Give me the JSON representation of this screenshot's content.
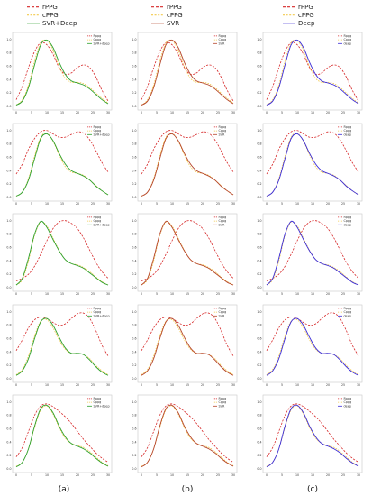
{
  "colors": {
    "rppg": "#d62728",
    "cppg": "#f2c94c",
    "svr_deep": "#2ca02c",
    "svr": "#b5452a",
    "deep": "#3a2bd6"
  },
  "top_legends": [
    {
      "col": 0,
      "entries": [
        "rPPG",
        "cPPG",
        "SVR+Deep"
      ]
    },
    {
      "col": 1,
      "entries": [
        "rPPG",
        "cPPG",
        "SVR"
      ]
    },
    {
      "col": 2,
      "entries": [
        "rPPG",
        "cPPG",
        "Deep"
      ]
    }
  ],
  "column_labels": [
    "(a)",
    "(b)",
    "(c)"
  ],
  "small_legends": [
    [
      "Rppg",
      "Cppg",
      "SVR+deep"
    ],
    [
      "Rppg",
      "Cppg",
      "SVR"
    ],
    [
      "Rppg",
      "Cppg",
      "deep"
    ]
  ],
  "chart_data": {
    "type": "line",
    "layout": "grid 5 rows x 3 columns",
    "x_ticks": [
      0,
      5,
      10,
      15,
      20,
      25,
      30
    ],
    "y_ticks": [
      0.0,
      0.2,
      0.4,
      0.6,
      0.8,
      1.0
    ],
    "xlim": [
      0,
      30
    ],
    "ylim": [
      0,
      1.05
    ],
    "x": [
      0,
      2,
      4,
      6,
      8,
      10,
      12,
      14,
      16,
      18,
      20,
      22,
      24,
      26,
      28,
      30
    ],
    "rows": [
      {
        "rppg": [
          0.1,
          0.3,
          0.58,
          0.82,
          0.95,
          0.92,
          0.78,
          0.58,
          0.48,
          0.5,
          0.58,
          0.62,
          0.58,
          0.44,
          0.24,
          0.08
        ],
        "cppg": [
          0.02,
          0.1,
          0.32,
          0.68,
          0.95,
          0.98,
          0.84,
          0.6,
          0.42,
          0.36,
          0.36,
          0.34,
          0.28,
          0.2,
          0.12,
          0.05
        ],
        "pred": [
          0.02,
          0.08,
          0.28,
          0.62,
          0.92,
          0.99,
          0.88,
          0.66,
          0.48,
          0.38,
          0.35,
          0.32,
          0.26,
          0.18,
          0.1,
          0.04
        ]
      },
      {
        "rppg": [
          0.35,
          0.5,
          0.72,
          0.88,
          0.98,
          1.0,
          0.95,
          0.9,
          0.9,
          0.94,
          0.98,
          0.96,
          0.86,
          0.7,
          0.52,
          0.38
        ],
        "cppg": [
          0.02,
          0.08,
          0.28,
          0.62,
          0.9,
          0.96,
          0.84,
          0.64,
          0.46,
          0.38,
          0.36,
          0.33,
          0.26,
          0.18,
          0.1,
          0.04
        ],
        "pred": [
          0.02,
          0.08,
          0.26,
          0.58,
          0.88,
          0.95,
          0.85,
          0.66,
          0.5,
          0.4,
          0.36,
          0.32,
          0.26,
          0.17,
          0.1,
          0.04
        ]
      },
      {
        "rppg": [
          0.1,
          0.14,
          0.2,
          0.32,
          0.5,
          0.7,
          0.88,
          0.98,
          1.0,
          0.96,
          0.88,
          0.74,
          0.56,
          0.38,
          0.24,
          0.14
        ],
        "cppg": [
          0.04,
          0.12,
          0.4,
          0.78,
          0.98,
          0.92,
          0.74,
          0.56,
          0.42,
          0.36,
          0.34,
          0.3,
          0.24,
          0.16,
          0.09,
          0.04
        ],
        "pred": [
          0.04,
          0.14,
          0.44,
          0.8,
          0.99,
          0.9,
          0.72,
          0.55,
          0.42,
          0.36,
          0.33,
          0.29,
          0.22,
          0.15,
          0.08,
          0.04
        ]
      },
      {
        "rppg": [
          0.42,
          0.58,
          0.76,
          0.88,
          0.92,
          0.9,
          0.84,
          0.8,
          0.82,
          0.9,
          0.97,
          0.98,
          0.9,
          0.72,
          0.5,
          0.34
        ],
        "cppg": [
          0.06,
          0.14,
          0.34,
          0.64,
          0.86,
          0.88,
          0.76,
          0.58,
          0.44,
          0.38,
          0.38,
          0.36,
          0.3,
          0.2,
          0.12,
          0.06
        ],
        "pred": [
          0.05,
          0.12,
          0.3,
          0.6,
          0.85,
          0.9,
          0.8,
          0.62,
          0.46,
          0.38,
          0.38,
          0.36,
          0.28,
          0.18,
          0.1,
          0.05
        ]
      },
      {
        "rppg": [
          0.18,
          0.32,
          0.56,
          0.8,
          0.94,
          0.97,
          0.93,
          0.86,
          0.78,
          0.68,
          0.56,
          0.44,
          0.34,
          0.24,
          0.16,
          0.1
        ],
        "cppg": [
          0.04,
          0.1,
          0.3,
          0.62,
          0.88,
          0.94,
          0.82,
          0.62,
          0.46,
          0.38,
          0.35,
          0.32,
          0.26,
          0.18,
          0.1,
          0.05
        ],
        "pred": [
          0.03,
          0.1,
          0.3,
          0.64,
          0.9,
          0.95,
          0.84,
          0.64,
          0.48,
          0.38,
          0.34,
          0.3,
          0.24,
          0.16,
          0.09,
          0.04
        ]
      }
    ]
  }
}
